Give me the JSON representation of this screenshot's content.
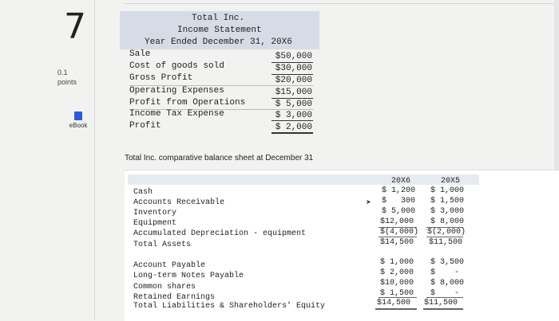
{
  "sidebar": {
    "question_number": "7",
    "points_value": "0.1",
    "points_label": "points",
    "ebook_label": "eBook"
  },
  "income_statement": {
    "company": "Total Inc.",
    "title": "Income Statement",
    "period": "Year Ended December 31, 20X6",
    "rows": [
      {
        "label": "Sale",
        "value": "$50,000"
      },
      {
        "label": "Cost of goods sold",
        "value": "$30,000"
      },
      {
        "label": "Gross Profit",
        "value": "$20,000"
      },
      {
        "label": "Operating Expenses",
        "value": "$15,000"
      },
      {
        "label": "Profit from Operations",
        "value": "$ 5,000"
      },
      {
        "label": "Income Tax Expense",
        "value": "$ 3,000"
      },
      {
        "label": "Profit",
        "value": "$ 2,000"
      }
    ]
  },
  "balance_sheet": {
    "title": "Total Inc. comparative balance sheet at December 31",
    "col1": "20X6",
    "col2": "20X5",
    "assets": [
      {
        "label": "Cash",
        "v1": "$ 1,200",
        "v2": "$ 1,000"
      },
      {
        "label": "Accounts Receivable",
        "v1": "$   300",
        "v2": "$ 1,500"
      },
      {
        "label": "Inventory",
        "v1": "$ 5,000",
        "v2": "$ 3,000"
      },
      {
        "label": "Equipment",
        "v1": "$12,000",
        "v2": "$ 8,000"
      },
      {
        "label": "Accumulated Depreciation - equipment",
        "v1": "$(4,000)",
        "v2": "$(2,000)"
      },
      {
        "label": "Total Assets",
        "v1": "$14,500",
        "v2": "$11,500"
      }
    ],
    "liabilities": [
      {
        "label": "Account Payable",
        "v1": "$ 1,000",
        "v2": "$ 3,500"
      },
      {
        "label": "Long-term Notes Payable",
        "v1": "$ 2,000",
        "v2": "$    -"
      },
      {
        "label": "Common shares",
        "v1": "$10,000",
        "v2": "$ 8,000"
      },
      {
        "label": "Retained Earnings",
        "v1": "$ 1,500",
        "v2": "$    -"
      },
      {
        "label": "Total Liabilities & Shareholders' Equity",
        "v1": "$14,500",
        "v2": "$11,500"
      }
    ]
  }
}
